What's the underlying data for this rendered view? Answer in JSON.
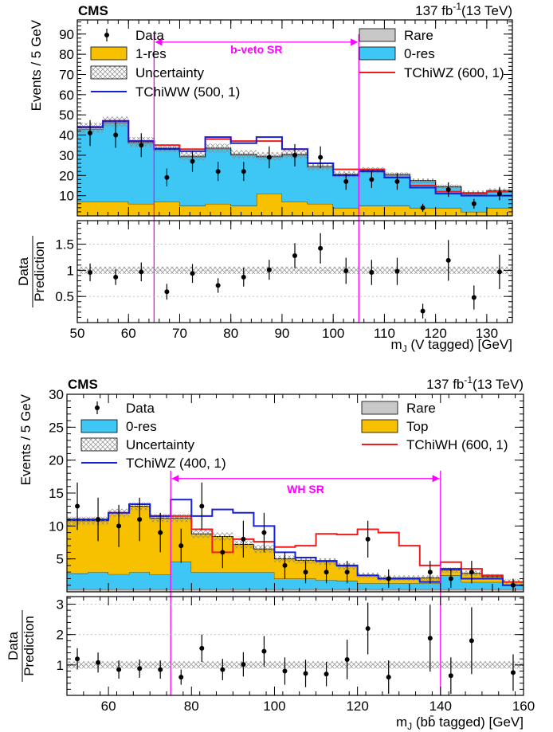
{
  "chart_data": [
    {
      "type": "bar",
      "experiment": "CMS",
      "lumi": "137 fb",
      "lumi_exp": "-1",
      "energy": "(13 TeV)",
      "ylabel": "Events / 5 GeV",
      "xlabel": "m",
      "xlabel_sub": "J",
      "xlabel_rest": " (V tagged) [GeV]",
      "ratio_ylabel_top": "Data",
      "ratio_ylabel_bottom": "Prediction",
      "xlim": [
        50,
        135
      ],
      "ylim": [
        0,
        97
      ],
      "ratio_ylim": [
        0,
        1.95
      ],
      "xticks": [
        "50",
        "60",
        "70",
        "80",
        "90",
        "100",
        "110",
        "120",
        "130"
      ],
      "yticks": [
        "10",
        "20",
        "30",
        "40",
        "50",
        "60",
        "70",
        "80",
        "90"
      ],
      "ratio_yticks": [
        "0.5",
        "1",
        "1.5"
      ],
      "bin_edges": [
        50,
        55,
        60,
        65,
        70,
        75,
        80,
        85,
        90,
        95,
        100,
        105,
        110,
        115,
        120,
        125,
        130,
        135
      ],
      "stack_order": [
        "1-res",
        "0-res",
        "Rare"
      ],
      "stack": [
        {
          "name": "1-res",
          "color": "#f7c100",
          "values": [
            7,
            7,
            6,
            7,
            5,
            6,
            5,
            11,
            7,
            6,
            4,
            5,
            5,
            4,
            4,
            2,
            4
          ]
        },
        {
          "name": "0-res",
          "color": "#3ec7f4",
          "values": [
            36,
            39,
            30,
            26,
            24,
            27,
            25,
            18,
            23,
            18,
            16,
            17,
            15,
            13,
            10,
            9,
            8
          ]
        },
        {
          "name": "Rare",
          "color": "#c8c8c8",
          "values": [
            0.6,
            0.6,
            0.5,
            0.5,
            0.5,
            0.5,
            0.5,
            0.5,
            0.5,
            0.5,
            0.5,
            0.5,
            0.5,
            0.5,
            0.5,
            0.5,
            0.5
          ]
        }
      ],
      "signals": [
        {
          "name": "TChiWZ (600, 1)",
          "color": "#ee1c1c",
          "values": [
            44,
            47,
            37,
            35,
            33,
            38,
            37,
            37,
            33,
            26,
            23,
            23,
            19,
            15,
            12,
            11,
            12
          ]
        },
        {
          "name": "TChiWW (500, 1)",
          "color": "#1520d9",
          "values": [
            44,
            47,
            37,
            33,
            32,
            39,
            36,
            39,
            33,
            26,
            20,
            22,
            19,
            14,
            11,
            10,
            10
          ]
        }
      ],
      "data": {
        "x": [
          52.5,
          57.5,
          62.5,
          67.5,
          72.5,
          77.5,
          82.5,
          87.5,
          92.5,
          97.5,
          102.5,
          107.5,
          112.5,
          117.5,
          122.5,
          127.5,
          132.5
        ],
        "y": [
          41,
          40,
          35,
          19,
          27,
          22,
          22,
          29,
          30,
          29,
          17,
          18,
          17,
          4,
          13,
          6,
          11
        ],
        "err": [
          6.4,
          6.3,
          5.9,
          4.4,
          5.2,
          4.7,
          4.7,
          5.4,
          5.5,
          5.4,
          4.1,
          4.2,
          4.1,
          2,
          3.6,
          2.4,
          3.3
        ]
      },
      "ratio": {
        "x": [
          52.5,
          57.5,
          62.5,
          67.5,
          72.5,
          77.5,
          82.5,
          87.5,
          92.5,
          97.5,
          102.5,
          107.5,
          112.5,
          117.5,
          122.5,
          127.5,
          132.5
        ],
        "y": [
          0.96,
          0.87,
          0.97,
          0.59,
          0.94,
          0.71,
          0.87,
          1.01,
          1.28,
          1.42,
          0.99,
          0.96,
          0.98,
          0.22,
          1.19,
          0.48,
          0.97
        ],
        "err": [
          0.17,
          0.15,
          0.18,
          0.15,
          0.18,
          0.14,
          0.18,
          0.19,
          0.24,
          0.29,
          0.25,
          0.24,
          0.26,
          0.14,
          0.39,
          0.23,
          0.33
        ]
      },
      "uncertainty": [
        2.5,
        2.5,
        2.5,
        2,
        2,
        2.2,
        2,
        2,
        2,
        2,
        1.5,
        1.5,
        1,
        1,
        1,
        1,
        1
      ],
      "ratio_uncertainty": [
        0.07,
        0.07,
        0.07,
        0.07,
        0.07,
        0.07,
        0.07,
        0.07,
        0.07,
        0.07,
        0.07,
        0.07,
        0.07,
        0.07,
        0.07,
        0.07,
        0.07
      ],
      "legend": [
        {
          "label": "Data",
          "type": "data"
        },
        {
          "label": "Rare",
          "type": "fill",
          "color": "#c8c8c8"
        },
        {
          "label": "1-res",
          "type": "fill",
          "color": "#f7c100"
        },
        {
          "label": "0-res",
          "type": "fill",
          "color": "#3ec7f4"
        },
        {
          "label": "Uncertainty",
          "type": "hatch"
        },
        {
          "label": "TChiWZ (600, 1)",
          "type": "line",
          "color": "#ee1c1c"
        },
        {
          "label": "TChiWW (500, 1)",
          "type": "line",
          "color": "#1520d9"
        }
      ],
      "legend_placement": "top",
      "signal_region": {
        "label": "b-veto SR",
        "range": [
          65,
          105
        ],
        "color": "#ff00ff",
        "arrow_y": 86
      }
    },
    {
      "type": "bar",
      "experiment": "CMS",
      "lumi": "137 fb",
      "lumi_exp": "-1",
      "energy": "(13 TeV)",
      "ylabel": "Events / 5 GeV",
      "xlabel": "m",
      "xlabel_sub": "J",
      "xlabel_rest": " (bb̄ tagged) [GeV]",
      "ratio_ylabel_top": "Data",
      "ratio_ylabel_bottom": "Prediction",
      "xlim": [
        50,
        160
      ],
      "ylim": [
        0,
        30
      ],
      "ratio_ylim": [
        0,
        3.25
      ],
      "xticks": [
        "60",
        "80",
        "100",
        "120",
        "140",
        "160"
      ],
      "yticks": [
        "5",
        "10",
        "15",
        "20",
        "25",
        "30"
      ],
      "ratio_yticks": [
        "1",
        "2",
        "3"
      ],
      "bin_edges": [
        50,
        55,
        60,
        65,
        70,
        75,
        80,
        85,
        90,
        95,
        100,
        105,
        110,
        115,
        120,
        125,
        130,
        135,
        140,
        145,
        150,
        155,
        160
      ],
      "stack_order": [
        "Rare",
        "0-res",
        "Top"
      ],
      "stack": [
        {
          "name": "Rare",
          "color": "#c8c8c8",
          "values": [
            0.4,
            0.4,
            0.4,
            0.4,
            0.4,
            0.4,
            0.4,
            0.4,
            0.4,
            0.4,
            0.4,
            0.4,
            0.4,
            0.4,
            0.4,
            0.4,
            0.4,
            0.4,
            0.4,
            0.4,
            0.4,
            0.4
          ]
        },
        {
          "name": "0-res",
          "color": "#3ec7f4",
          "values": [
            2.4,
            2.6,
            2.3,
            2.6,
            2.2,
            4.2,
            2.6,
            2.6,
            2.6,
            2.6,
            1.6,
            1.6,
            1.4,
            1.3,
            0.9,
            0.9,
            0.9,
            0.9,
            2.1,
            1.1,
            1.1,
            0.6
          ]
        },
        {
          "name": "Top",
          "color": "#f7c100",
          "values": [
            8,
            7.8,
            9.3,
            10,
            8.6,
            6.6,
            5.8,
            5.4,
            4.2,
            3.5,
            3,
            2.8,
            2.8,
            2.2,
            1.2,
            0.8,
            0.8,
            0.8,
            0.8,
            1.3,
            0.8,
            0.5
          ]
        }
      ],
      "signals": [
        {
          "name": "TChiWH (600, 1)",
          "color": "#ee1c1c",
          "values": [
            11,
            11,
            12,
            13.3,
            11.5,
            11.5,
            9.5,
            6,
            8,
            7.6,
            6.8,
            7,
            8.8,
            8.7,
            9.5,
            9,
            7,
            4,
            4.5,
            3.5,
            2.5,
            1.5
          ]
        },
        {
          "name": "TChiWZ (400, 1)",
          "color": "#1520d9",
          "values": [
            11,
            11,
            12,
            13.3,
            11.5,
            14,
            11.5,
            12.5,
            12,
            10,
            6,
            5.2,
            4.7,
            4,
            2.5,
            2,
            2,
            1.5,
            3.5,
            2,
            2,
            1
          ]
        }
      ],
      "data": {
        "x": [
          52.5,
          57.5,
          62.5,
          67.5,
          72.5,
          77.5,
          82.5,
          87.5,
          92.5,
          97.5,
          102.5,
          107.5,
          112.5,
          117.5,
          122.5,
          127.5,
          132.5,
          137.5,
          142.5,
          147.5,
          152.5,
          157.5
        ],
        "y": [
          13,
          11,
          10,
          11,
          9,
          7,
          13,
          6,
          8,
          9,
          4,
          3,
          3,
          3,
          8,
          2,
          0,
          3,
          2,
          3,
          0,
          1
        ],
        "err": [
          3.6,
          3.3,
          3.2,
          3.3,
          3,
          2.6,
          3.6,
          2.4,
          2.8,
          3,
          2,
          1.7,
          1.7,
          1.7,
          2.8,
          1.4,
          1.2,
          1.7,
          1.4,
          1.7,
          1.2,
          1
        ]
      },
      "ratio": {
        "x": [
          52.5,
          57.5,
          62.5,
          67.5,
          72.5,
          77.5,
          82.5,
          87.5,
          92.5,
          97.5,
          102.5,
          107.5,
          112.5,
          117.5,
          122.5,
          127.5,
          137.5,
          142.5,
          147.5,
          157.5
        ],
        "y": [
          1.2,
          1.08,
          0.85,
          0.88,
          0.85,
          0.6,
          1.55,
          0.85,
          1.02,
          1.45,
          0.8,
          0.72,
          0.7,
          1.18,
          2.2,
          0.6,
          1.88,
          0.65,
          1.8,
          0.75
        ],
        "err": [
          0.35,
          0.33,
          0.3,
          0.3,
          0.3,
          0.25,
          0.45,
          0.35,
          0.4,
          0.5,
          0.45,
          0.45,
          0.4,
          0.65,
          0.85,
          0.55,
          1.1,
          0.6,
          1.1,
          0.6
        ]
      },
      "uncertainty": [
        0.6,
        0.6,
        0.6,
        0.6,
        0.6,
        0.6,
        0.6,
        0.6,
        0.6,
        0.6,
        0.5,
        0.5,
        0.5,
        0.5,
        0.4,
        0.4,
        0.4,
        0.4,
        0.4,
        0.4,
        0.4,
        0.4
      ],
      "ratio_uncertainty": [
        0.12,
        0.12,
        0.12,
        0.12,
        0.12,
        0.12,
        0.12,
        0.12,
        0.12,
        0.12,
        0.12,
        0.12,
        0.12,
        0.12,
        0.12,
        0.12,
        0.12,
        0.12,
        0.12,
        0.12,
        0.12,
        0.12
      ],
      "legend": [
        {
          "label": "Data",
          "type": "data"
        },
        {
          "label": "Rare",
          "type": "fill",
          "color": "#c8c8c8"
        },
        {
          "label": "0-res",
          "type": "fill",
          "color": "#3ec7f4"
        },
        {
          "label": "Top",
          "type": "fill",
          "color": "#f7c100"
        },
        {
          "label": "Uncertainty",
          "type": "hatch"
        },
        {
          "label": "TChiWH (600, 1)",
          "type": "line",
          "color": "#ee1c1c"
        },
        {
          "label": "TChiWZ (400, 1)",
          "type": "line",
          "color": "#1520d9"
        }
      ],
      "legend_placement": "top",
      "signal_region": {
        "label": "WH SR",
        "range": [
          75,
          140
        ],
        "color": "#ff00ff",
        "arrow_y": 17.2
      }
    }
  ]
}
